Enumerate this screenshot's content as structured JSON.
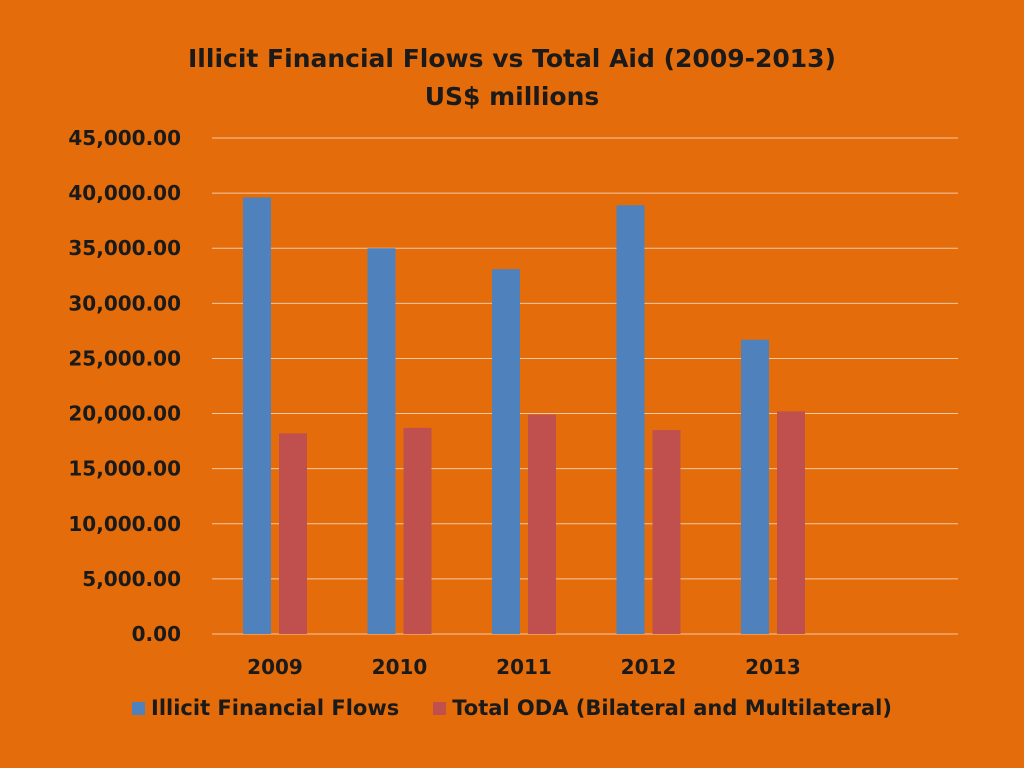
{
  "chart_data": {
    "type": "bar",
    "title": "Illicit Financial Flows vs Total Aid (2009-2013)",
    "subtitle": "US$ millions",
    "categories": [
      "2009",
      "2010",
      "2011",
      "2012",
      "2013"
    ],
    "series": [
      {
        "name": "Illicit Financial Flows",
        "color": "#4F81BD",
        "values": [
          39600,
          35000,
          33100,
          38900,
          26700
        ]
      },
      {
        "name": "Total ODA (Bilateral and Multilateral)",
        "color": "#C0504D",
        "values": [
          18200,
          18700,
          19900,
          18500,
          20200
        ]
      }
    ],
    "ylim": [
      0,
      45000
    ],
    "yticks": [
      "0.00",
      "5,000.00",
      "10,000.00",
      "15,000.00",
      "20,000.00",
      "25,000.00",
      "30,000.00",
      "35,000.00",
      "40,000.00",
      "45,000.00"
    ],
    "grid": true,
    "legend_position": "bottom"
  }
}
